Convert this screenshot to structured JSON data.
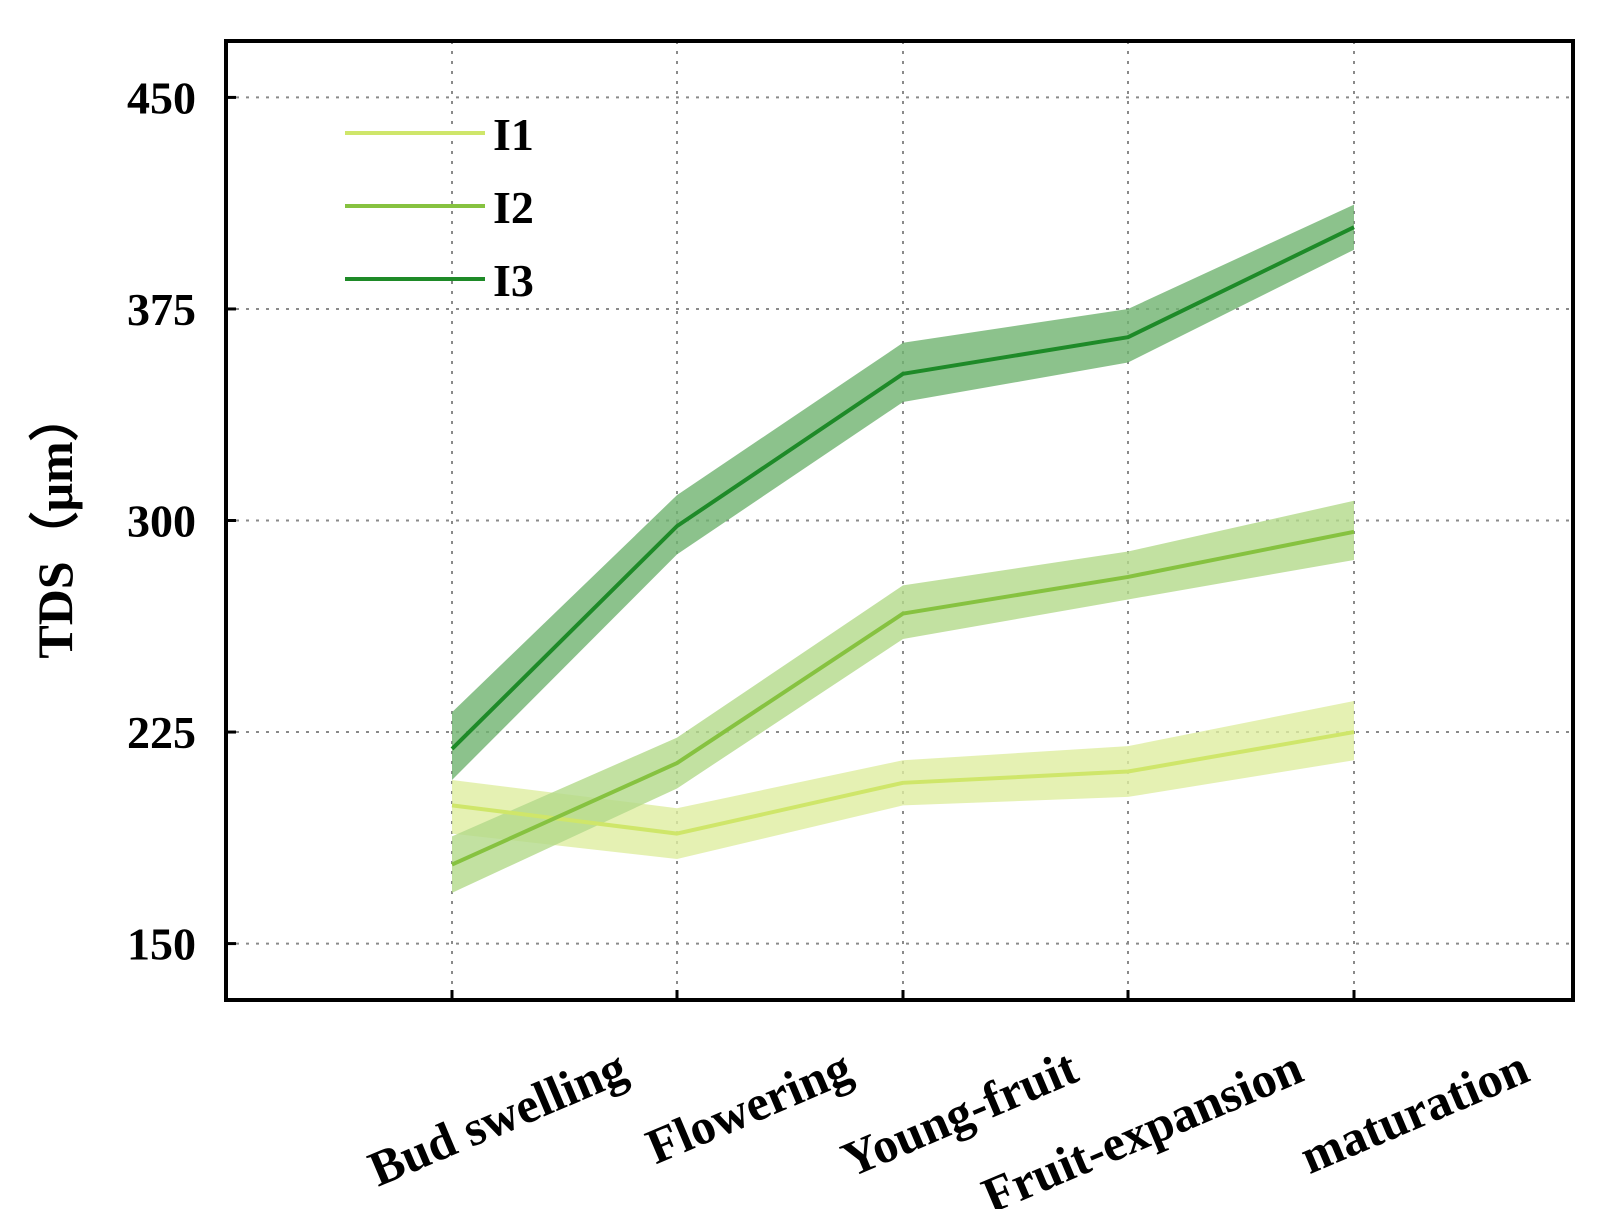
{
  "chart_data": {
    "type": "line",
    "title": "",
    "xlabel": "",
    "ylabel": "TDS（μm）",
    "categories": [
      "Bud swelling",
      "Flowering",
      "Young-fruit",
      "Fruit-expansion",
      "maturation"
    ],
    "ylim": [
      130,
      470
    ],
    "yticks": [
      150,
      225,
      300,
      375,
      450
    ],
    "grid": true,
    "legend_position": "top-left",
    "shaded_band": "mean ± error",
    "series": [
      {
        "name": "I1",
        "color": "#cfe66a",
        "band_color": "#dfeea0",
        "values": [
          199,
          189,
          207,
          211,
          225
        ],
        "lower": [
          189,
          180,
          199,
          202,
          215
        ],
        "upper": [
          208,
          198,
          215,
          220,
          236
        ]
      },
      {
        "name": "I2",
        "color": "#86c240",
        "band_color": "#b3d98a",
        "values": [
          178,
          214,
          267,
          280,
          296
        ],
        "lower": [
          168,
          205,
          258,
          272,
          286
        ],
        "upper": [
          188,
          223,
          277,
          289,
          307
        ]
      },
      {
        "name": "I3",
        "color": "#1e8a28",
        "band_color": "#6fb36f",
        "values": [
          219,
          298,
          352,
          365,
          404
        ],
        "lower": [
          208,
          288,
          342,
          356,
          396
        ],
        "upper": [
          232,
          309,
          363,
          375,
          412
        ]
      }
    ]
  }
}
